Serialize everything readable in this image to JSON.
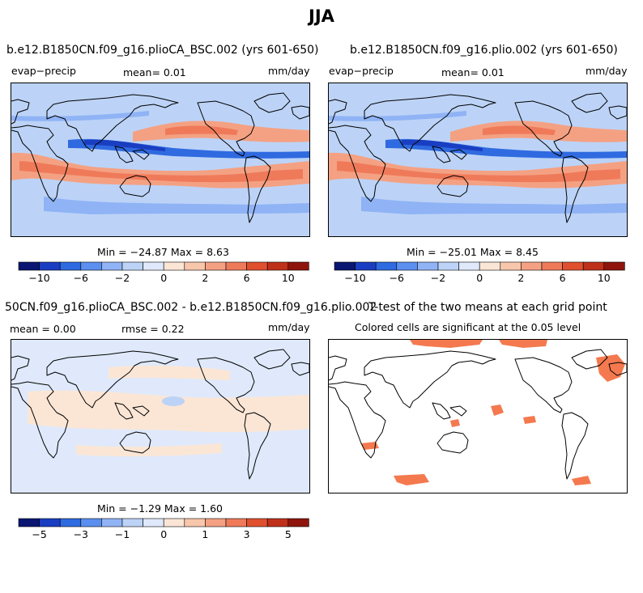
{
  "title": "JJA",
  "colors": {
    "scale": [
      "#0a1672",
      "#1a3ec2",
      "#2f6ae0",
      "#5b8ff0",
      "#8fb3f5",
      "#bcd3f7",
      "#dfe9fb",
      "#fbe6d6",
      "#f8c6ab",
      "#f4a183",
      "#ef7a5a",
      "#e0502f",
      "#bf3019",
      "#8f150c"
    ],
    "sig": "#f4794f",
    "land_line": "#000000"
  },
  "panels": [
    {
      "title": "b.e12.B1850CN.f09_g16.plioCA_BSC.002 (yrs 601-650)",
      "left_label": "evap−precip",
      "center_label": "mean=   0.01",
      "right_label": "mm/day",
      "stats": "Min = −24.87 Max =    8.63",
      "cbar_ticks": [
        "−10",
        "−6",
        "−2",
        "0",
        "2",
        "6",
        "10"
      ]
    },
    {
      "title": "b.e12.B1850CN.f09_g16.plio.002 (yrs 601-650)",
      "left_label": "evap−precip",
      "center_label": "mean=   0.01",
      "right_label": "mm/day",
      "stats": "Min = −25.01 Max =    8.45",
      "cbar_ticks": [
        "−10",
        "−6",
        "−2",
        "0",
        "2",
        "6",
        "10"
      ]
    },
    {
      "title": "50CN.f09_g16.plioCA_BSC.002 - b.e12.B1850CN.f09_g16.plio.002",
      "left_label": "mean =   0.00",
      "center_label": "rmse =   0.22",
      "right_label": "mm/day",
      "stats": "Min =  −1.29 Max =   1.60",
      "cbar_ticks": [
        "−5",
        "−3",
        "−1",
        "0",
        "1",
        "3",
        "5"
      ]
    },
    {
      "title": "T-test of the two means at each grid point",
      "subtitle": "Colored cells are significant at the 0.05 level"
    }
  ]
}
